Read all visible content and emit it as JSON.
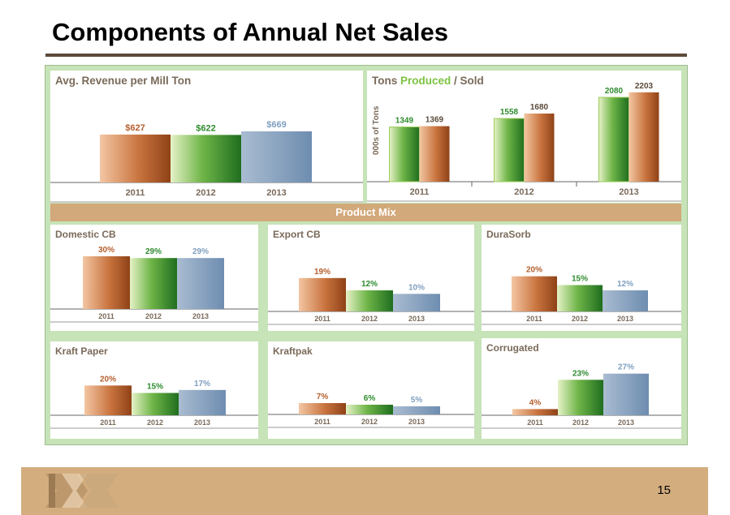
{
  "title": "Components of Annual Net Sales",
  "page_number": "15",
  "product_mix_label": "Product Mix",
  "colors": {
    "2011": "#b55e2d",
    "2012": "#2e8b2e",
    "2013": "#7f9fbf",
    "title_text": "#7a6a5a",
    "band": "#d2a97a",
    "frame": "#c7e3b8"
  },
  "tons_chart_title": {
    "prefix": "Tons ",
    "produced": "Produced",
    "suffix": " / Sold"
  },
  "chart_data": [
    {
      "id": "avg-revenue",
      "type": "bar",
      "title": "Avg. Revenue per Mill Ton",
      "categories": [
        "2011",
        "2012",
        "2013"
      ],
      "values": [
        627,
        622,
        669
      ],
      "labels": [
        "$627",
        "$622",
        "$669"
      ],
      "ylim": [
        0,
        700
      ]
    },
    {
      "id": "tons",
      "type": "bar",
      "title": "Tons Produced / Sold",
      "ylabel": "000s of Tons",
      "categories": [
        "2011",
        "2012",
        "2013"
      ],
      "series": [
        {
          "name": "Produced",
          "values": [
            1349,
            1558,
            2080
          ]
        },
        {
          "name": "Sold",
          "values": [
            1369,
            1680,
            2203
          ]
        }
      ],
      "ylim": [
        0,
        2300
      ]
    },
    {
      "id": "domestic-cb",
      "type": "bar",
      "title": "Domestic CB",
      "categories": [
        "2011",
        "2012",
        "2013"
      ],
      "values": [
        30,
        29,
        29
      ],
      "labels": [
        "30%",
        "29%",
        "29%"
      ],
      "ylim": [
        0,
        30
      ]
    },
    {
      "id": "export-cb",
      "type": "bar",
      "title": "Export CB",
      "categories": [
        "2011",
        "2012",
        "2013"
      ],
      "values": [
        19,
        12,
        10
      ],
      "labels": [
        "19%",
        "12%",
        "10%"
      ],
      "ylim": [
        0,
        30
      ]
    },
    {
      "id": "durasorb",
      "type": "bar",
      "title": "DuraSorb",
      "categories": [
        "2011",
        "2012",
        "2013"
      ],
      "values": [
        20,
        15,
        12
      ],
      "labels": [
        "20%",
        "15%",
        "12%"
      ],
      "ylim": [
        0,
        30
      ]
    },
    {
      "id": "kraft-paper",
      "type": "bar",
      "title": "Kraft Paper",
      "categories": [
        "2011",
        "2012",
        "2013"
      ],
      "values": [
        20,
        15,
        17
      ],
      "labels": [
        "20%",
        "15%",
        "17%"
      ],
      "ylim": [
        0,
        30
      ]
    },
    {
      "id": "kraftpak",
      "type": "bar",
      "title": "Kraftpak",
      "categories": [
        "2011",
        "2012",
        "2013"
      ],
      "values": [
        7,
        6,
        5
      ],
      "labels": [
        "7%",
        "6%",
        "5%"
      ],
      "ylim": [
        0,
        30
      ]
    },
    {
      "id": "corrugated",
      "type": "bar",
      "title": "Corrugated",
      "categories": [
        "2011",
        "2012",
        "2013"
      ],
      "values": [
        4,
        23,
        27
      ],
      "labels": [
        "4%",
        "23%",
        "27%"
      ],
      "ylim": [
        0,
        30
      ]
    }
  ]
}
